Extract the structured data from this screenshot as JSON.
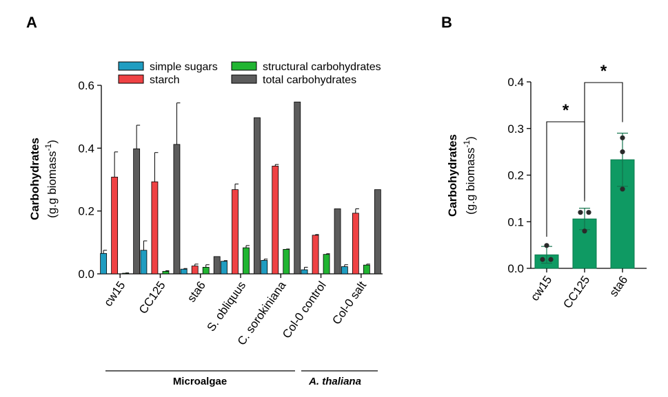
{
  "panels": {
    "a": {
      "letter": "A"
    },
    "b": {
      "letter": "B"
    }
  },
  "chart_data": [
    {
      "type": "bar",
      "panel": "A",
      "categories": [
        "cw15",
        "CC125",
        "sta6",
        "S. obliquus",
        "C. sorokiniana",
        "Col-0 control",
        "Col-0 salt"
      ],
      "series": [
        {
          "name": "simple sugars",
          "color": "#1f9dc1",
          "values": [
            0.065,
            0.075,
            0.015,
            0.04,
            0.043,
            0.013,
            0.023
          ],
          "errors": [
            0.01,
            0.03,
            0.002,
            0.002,
            0.004,
            0.008,
            0.006
          ]
        },
        {
          "name": "starch",
          "color": "#ef4244",
          "values": [
            0.308,
            0.293,
            0.025,
            0.268,
            0.343,
            0.123,
            0.193
          ],
          "errors": [
            0.08,
            0.093,
            0.006,
            0.018,
            0.005,
            0.002,
            0.014
          ]
        },
        {
          "name": "structural carbohydrates",
          "color": "#21b532",
          "values": [
            0.002,
            0.008,
            0.021,
            0.083,
            0.078,
            0.062,
            0.028
          ],
          "errors": [
            0.001,
            0.002,
            0.008,
            0.007,
            0.001,
            0.002,
            0.003
          ]
        },
        {
          "name": "total carbohydrates",
          "color": "#5c5c5c",
          "values": [
            0.398,
            0.412,
            0.055,
            0.497,
            0.547,
            0.207,
            0.268
          ],
          "errors": [
            0.075,
            0.132,
            0.0,
            0.0,
            0.0,
            0.0,
            0.0
          ]
        }
      ],
      "ylabel_main": "Carbohydrates",
      "ylabel_unit": "(g.g biomass",
      "ylabel_sup": "-1",
      "ylabel_close": ")",
      "ylim": [
        0,
        0.6
      ],
      "yticks": [
        "0.0",
        "0.2",
        "0.4",
        "0.6"
      ],
      "groups": [
        {
          "label": "Microalgae",
          "italic": false
        },
        {
          "label": "A. thaliana",
          "italic": true
        }
      ],
      "legend_position": "top"
    },
    {
      "type": "bar",
      "panel": "B",
      "categories": [
        "cw15",
        "CC125",
        "sta6"
      ],
      "color": "#0f9a63",
      "values": [
        0.029,
        0.106,
        0.233
      ],
      "errors": [
        0.018,
        0.023,
        0.057
      ],
      "points": [
        [
          0.049,
          0.019,
          0.019
        ],
        [
          0.12,
          0.12,
          0.08
        ],
        [
          0.28,
          0.25,
          0.17
        ]
      ],
      "significance": [
        {
          "pair": [
            "cw15",
            "CC125"
          ],
          "label": "*"
        },
        {
          "pair": [
            "CC125",
            "sta6"
          ],
          "label": "*"
        }
      ],
      "ylabel_main": "Carbohydrates",
      "ylabel_unit": "(g.g biomass",
      "ylabel_sup": "-1",
      "ylabel_close": ")",
      "ylim": [
        0,
        0.4
      ],
      "yticks": [
        "0.0",
        "0.1",
        "0.2",
        "0.3",
        "0.4"
      ]
    }
  ]
}
